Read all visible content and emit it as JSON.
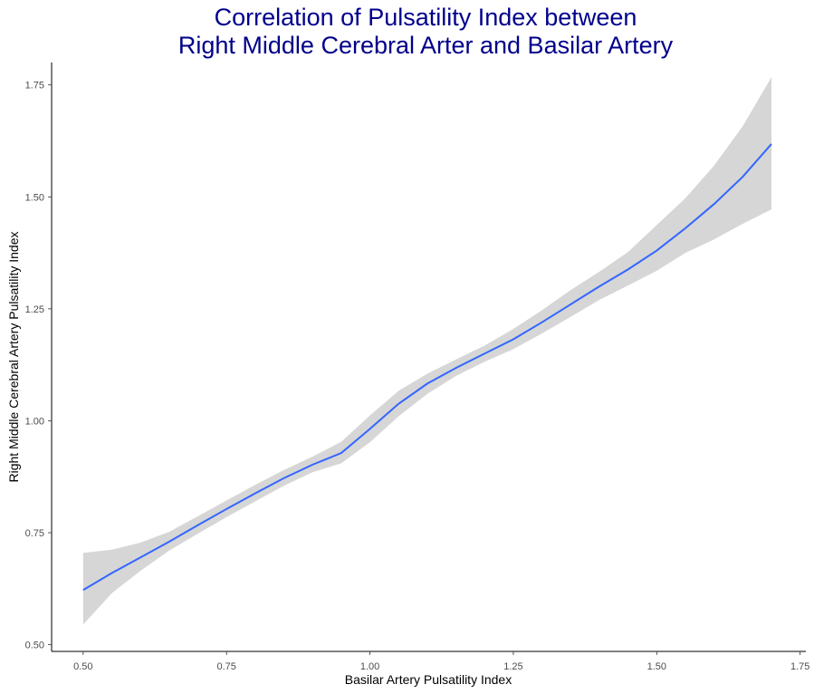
{
  "chart_data": {
    "type": "line",
    "title_lines": [
      "Correlation of Pulsatility Index between",
      "Right Middle Cerebral Arter and Basilar Artery"
    ],
    "xlabel": "Basilar Artery Pulsatility Index",
    "ylabel": "Right Middle Cerebral Artery Pulsatility Index",
    "xlim": [
      0.445,
      1.76
    ],
    "ylim": [
      0.485,
      1.8
    ],
    "x_ticks": [
      0.5,
      0.75,
      1.0,
      1.25,
      1.5,
      1.75
    ],
    "x_tick_labels": [
      "0.50",
      "0.75",
      "1.00",
      "1.25",
      "1.50",
      "1.75"
    ],
    "y_ticks": [
      0.5,
      0.75,
      1.0,
      1.25,
      1.5,
      1.75
    ],
    "y_tick_labels": [
      "0.50",
      "0.75",
      "1.00",
      "1.25",
      "1.50",
      "1.75"
    ],
    "grid": false,
    "colors": {
      "line": "#3366ff",
      "band": "#d6d6d6",
      "title": "#00008b"
    },
    "smooth": {
      "x": [
        0.5,
        0.55,
        0.6,
        0.65,
        0.7,
        0.75,
        0.8,
        0.85,
        0.9,
        0.95,
        1.0,
        1.05,
        1.1,
        1.15,
        1.2,
        1.25,
        1.3,
        1.35,
        1.4,
        1.45,
        1.5,
        1.55,
        1.6,
        1.65,
        1.7
      ],
      "y": [
        0.622,
        0.66,
        0.695,
        0.73,
        0.767,
        0.803,
        0.838,
        0.872,
        0.902,
        0.928,
        0.982,
        1.038,
        1.083,
        1.118,
        1.15,
        1.182,
        1.22,
        1.26,
        1.3,
        1.338,
        1.38,
        1.43,
        1.484,
        1.545,
        1.618
      ],
      "lower": [
        0.545,
        0.615,
        0.665,
        0.71,
        0.748,
        0.785,
        0.82,
        0.855,
        0.885,
        0.905,
        0.952,
        1.01,
        1.06,
        1.1,
        1.132,
        1.16,
        1.195,
        1.232,
        1.27,
        1.302,
        1.335,
        1.375,
        1.405,
        1.44,
        1.472
      ],
      "upper": [
        0.705,
        0.712,
        0.728,
        0.752,
        0.787,
        0.822,
        0.857,
        0.89,
        0.92,
        0.953,
        1.012,
        1.067,
        1.105,
        1.137,
        1.168,
        1.205,
        1.247,
        1.292,
        1.333,
        1.377,
        1.437,
        1.497,
        1.57,
        1.658,
        1.767
      ]
    }
  }
}
